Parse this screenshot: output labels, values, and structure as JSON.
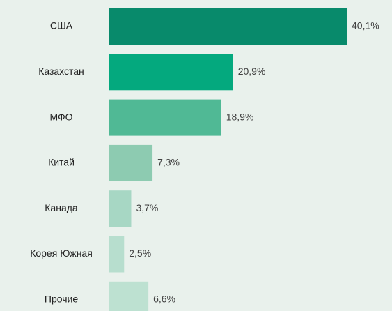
{
  "chart_data": {
    "type": "barh",
    "categories": [
      "США",
      "Казахстан",
      "МФО",
      "Китай",
      "Канада",
      "Корея Южная",
      "Прочие"
    ],
    "values": [
      40.1,
      20.9,
      18.9,
      7.3,
      3.7,
      2.5,
      6.6
    ],
    "value_labels": [
      "40,1%",
      "20,9%",
      "18,9%",
      "7,3%",
      "3,7%",
      "2,5%",
      "6,6%"
    ],
    "colors": [
      "#088a6b",
      "#04a97e",
      "#50b995",
      "#8dcbb1",
      "#a7d7c4",
      "#b7dece",
      "#bde1d1"
    ]
  }
}
